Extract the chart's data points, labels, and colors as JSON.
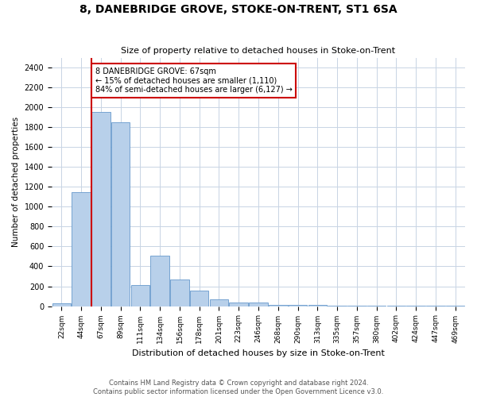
{
  "title": "8, DANEBRIDGE GROVE, STOKE-ON-TRENT, ST1 6SA",
  "subtitle": "Size of property relative to detached houses in Stoke-on-Trent",
  "xlabel": "Distribution of detached houses by size in Stoke-on-Trent",
  "ylabel": "Number of detached properties",
  "footer_line1": "Contains HM Land Registry data © Crown copyright and database right 2024.",
  "footer_line2": "Contains public sector information licensed under the Open Government Licence v3.0.",
  "annotation_line1": "8 DANEBRIDGE GROVE: 67sqm",
  "annotation_line2": "← 15% of detached houses are smaller (1,110)",
  "annotation_line3": "84% of semi-detached houses are larger (6,127) →",
  "property_size_idx": 2,
  "bin_labels": [
    "22sqm",
    "44sqm",
    "67sqm",
    "89sqm",
    "111sqm",
    "134sqm",
    "156sqm",
    "178sqm",
    "201sqm",
    "223sqm",
    "246sqm",
    "268sqm",
    "290sqm",
    "313sqm",
    "335sqm",
    "357sqm",
    "380sqm",
    "402sqm",
    "424sqm",
    "447sqm",
    "469sqm"
  ],
  "heights": [
    30,
    1150,
    1950,
    1850,
    210,
    510,
    265,
    155,
    70,
    40,
    35,
    10,
    15,
    10,
    5,
    3,
    3,
    3,
    2,
    2,
    1
  ],
  "bar_color": "#b8d0ea",
  "bar_edge_color": "#6699cc",
  "red_line_color": "#cc0000",
  "annotation_box_color": "#cc0000",
  "background_color": "#ffffff",
  "grid_color": "#c8d4e4",
  "ylim": [
    0,
    2500
  ],
  "yticks": [
    0,
    200,
    400,
    600,
    800,
    1000,
    1200,
    1400,
    1600,
    1800,
    2000,
    2200,
    2400
  ]
}
